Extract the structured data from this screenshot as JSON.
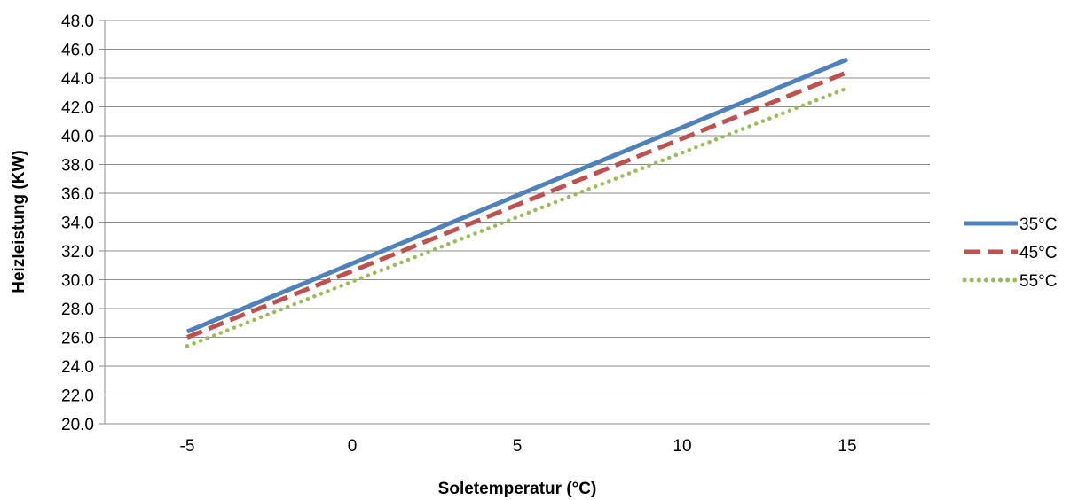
{
  "chart_data": {
    "type": "line",
    "xlabel": "Soletemperatur (°C)",
    "ylabel": "Heizleistung (KW)",
    "x_ticks": [
      "-5",
      "0",
      "5",
      "10",
      "15"
    ],
    "x_tick_values": [
      -5,
      0,
      5,
      10,
      15
    ],
    "y_ticks": [
      "20.0",
      "22.0",
      "24.0",
      "26.0",
      "28.0",
      "30.0",
      "32.0",
      "34.0",
      "36.0",
      "38.0",
      "40.0",
      "42.0",
      "44.0",
      "46.0",
      "48.0"
    ],
    "xlim": [
      -7.5,
      17.5
    ],
    "ylim": [
      20,
      48
    ],
    "grid": "horizontal",
    "legend_position": "right",
    "series": [
      {
        "name": "35°C",
        "color": "#4f81bd",
        "style": "solid",
        "x": [
          -5,
          15
        ],
        "y": [
          26.4,
          45.3
        ]
      },
      {
        "name": "45°C",
        "color": "#c0504d",
        "style": "dashed",
        "x": [
          -5,
          15
        ],
        "y": [
          26.0,
          44.4
        ]
      },
      {
        "name": "55°C",
        "color": "#9bbb59",
        "style": "dotted",
        "x": [
          -5,
          15
        ],
        "y": [
          25.4,
          43.3
        ]
      }
    ]
  }
}
